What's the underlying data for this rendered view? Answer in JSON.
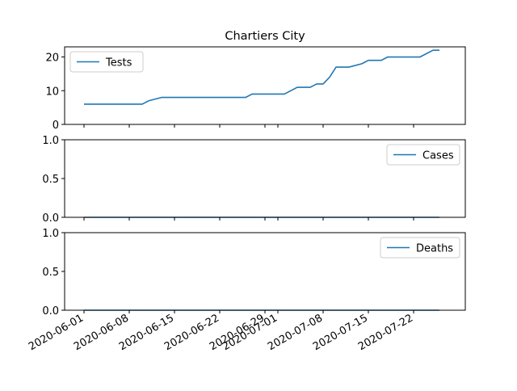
{
  "chart_data": {
    "type": "line",
    "title": "Chartiers City",
    "series_color": "#1f77b4",
    "x_ticks": [
      "2020-06-01",
      "2020-06-08",
      "2020-06-15",
      "2020-06-22",
      "2020-06-29",
      "2020-07-01",
      "2020-07-08",
      "2020-07-15",
      "2020-07-22"
    ],
    "x_range": [
      "2020-05-29",
      "2020-07-30"
    ],
    "panels": [
      {
        "name": "Tests",
        "legend": "top-left",
        "ylim": [
          0,
          23
        ],
        "y_ticks": [
          "0",
          "10",
          "20"
        ],
        "y_tick_values": [
          0,
          10,
          20
        ],
        "points": [
          [
            "2020-06-01",
            6
          ],
          [
            "2020-06-10",
            6
          ],
          [
            "2020-06-11",
            7
          ],
          [
            "2020-06-13",
            8
          ],
          [
            "2020-06-26",
            8
          ],
          [
            "2020-06-27",
            9
          ],
          [
            "2020-07-02",
            9
          ],
          [
            "2020-07-04",
            11
          ],
          [
            "2020-07-06",
            11
          ],
          [
            "2020-07-07",
            12
          ],
          [
            "2020-07-08",
            12
          ],
          [
            "2020-07-09",
            14
          ],
          [
            "2020-07-10",
            17
          ],
          [
            "2020-07-12",
            17
          ],
          [
            "2020-07-14",
            18
          ],
          [
            "2020-07-15",
            19
          ],
          [
            "2020-07-17",
            19
          ],
          [
            "2020-07-18",
            20
          ],
          [
            "2020-07-23",
            20
          ],
          [
            "2020-07-25",
            22
          ],
          [
            "2020-07-26",
            22
          ]
        ]
      },
      {
        "name": "Cases",
        "legend": "top-right",
        "ylim": [
          0,
          1
        ],
        "y_ticks": [
          "0.0",
          "0.5",
          "1.0"
        ],
        "y_tick_values": [
          0,
          0.5,
          1
        ],
        "points": [
          [
            "2020-06-01",
            0
          ],
          [
            "2020-07-26",
            0
          ]
        ]
      },
      {
        "name": "Deaths",
        "legend": "top-right",
        "ylim": [
          0,
          1
        ],
        "y_ticks": [
          "0.0",
          "0.5",
          "1.0"
        ],
        "y_tick_values": [
          0,
          0.5,
          1
        ],
        "points": [
          [
            "2020-06-01",
            0
          ],
          [
            "2020-07-26",
            0
          ]
        ]
      }
    ]
  }
}
